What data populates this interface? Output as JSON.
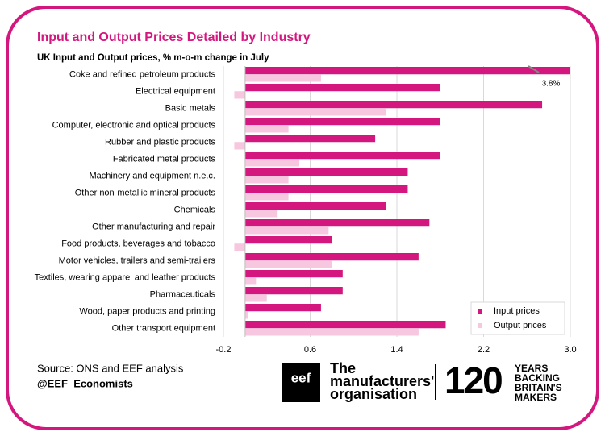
{
  "chart_data": {
    "type": "barh",
    "title": "Input and Output Prices Detailed by Industry",
    "subtitle": "UK Input and Output prices, % m-o-m change in July",
    "categories": [
      "Coke and refined petroleum products",
      "Electrical equipment",
      "Basic metals",
      "Computer, electronic and optical products",
      "Rubber and plastic products",
      "Fabricated metal products",
      "Machinery and equipment n.e.c.",
      "Other non-metallic mineral products",
      "Chemicals",
      "Other manufacturing and repair",
      "Food products, beverages and tobacco",
      "Motor vehicles, trailers and semi-trailers",
      "Textiles, wearing apparel and leather products",
      "Pharmaceuticals",
      "Wood, paper products and printing",
      "Other transport equipment"
    ],
    "series": [
      {
        "name": "Input prices",
        "color": "#d4177f",
        "values": [
          3.8,
          1.8,
          2.74,
          1.8,
          1.2,
          1.8,
          1.5,
          1.5,
          1.3,
          1.7,
          0.8,
          1.6,
          0.9,
          0.9,
          0.7,
          1.85
        ],
        "value_labels": [
          "3.8%",
          null,
          null,
          null,
          null,
          null,
          null,
          null,
          null,
          null,
          null,
          null,
          null,
          null,
          null,
          null
        ]
      },
      {
        "name": "Output prices",
        "color": "#f7c6df",
        "values": [
          0.7,
          -0.1,
          1.3,
          0.4,
          -0.1,
          0.5,
          0.4,
          0.4,
          0.3,
          0.77,
          -0.1,
          0.8,
          0.1,
          0.2,
          0.03,
          1.6
        ]
      }
    ],
    "xlim": [
      -0.2,
      3.0
    ],
    "xticks": [
      -0.2,
      0.6,
      1.4,
      2.2,
      {
        "value": 3,
        "label": "3.0"
      }
    ],
    "grid": true,
    "legend": "lower right"
  },
  "footer": {
    "source": "Source: ONS and EEF analysis",
    "handle": "@EEF_Economists",
    "logo": {
      "mark": "eef",
      "name": [
        "The",
        "manufacturers'",
        "organisation"
      ],
      "number": "120",
      "tagline": [
        "YEARS",
        "BACKING",
        "BRITAIN'S",
        "MAKERS"
      ]
    }
  }
}
